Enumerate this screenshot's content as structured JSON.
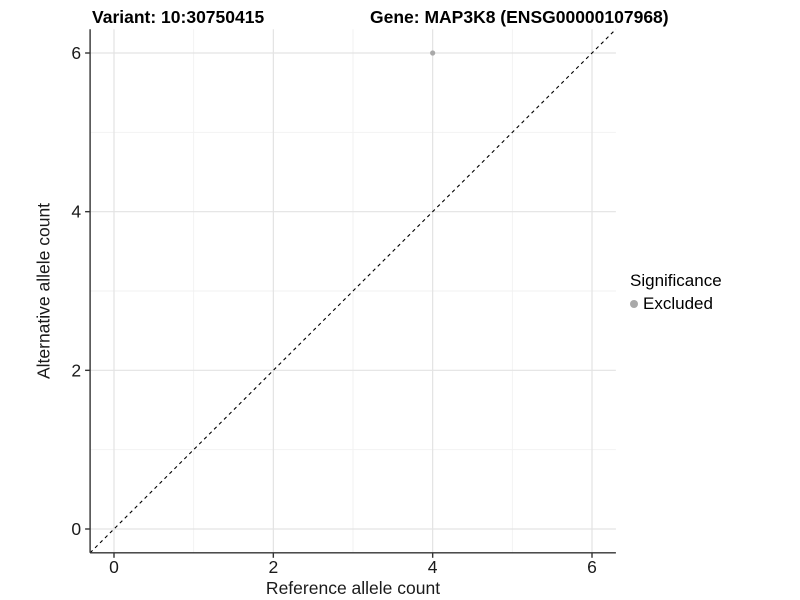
{
  "chart_data": {
    "type": "scatter",
    "title_left": "Variant: 10:30750415",
    "title_right": "Gene: MAP3K8 (ENSG00000107968)",
    "xlabel": "Reference allele count",
    "ylabel": "Alternative allele count",
    "xlim": [
      -0.3,
      6.3
    ],
    "ylim": [
      -0.3,
      6.3
    ],
    "x_ticks": [
      0,
      2,
      4,
      6
    ],
    "y_ticks": [
      0,
      2,
      4,
      6
    ],
    "x_minor_ticks": [
      1,
      3,
      5
    ],
    "y_minor_ticks": [
      1,
      3,
      5
    ],
    "grid": true,
    "legend_position": "right",
    "reference_line": {
      "meaning": "y = x identity line",
      "style": "dashed",
      "from": [
        -0.3,
        -0.3
      ],
      "to": [
        6.3,
        6.3
      ]
    },
    "points": [
      {
        "x": 4,
        "y": 6,
        "series": "Excluded"
      }
    ],
    "legend": {
      "title": "Significance",
      "items": [
        {
          "label": "Excluded",
          "color": "#a9a9a9"
        }
      ]
    },
    "colors": {
      "point": "#a9a9a9",
      "grid_major": "#e3e3e3",
      "grid_minor": "#f1f1f1",
      "axis_line": "#333333",
      "reference_line": "#000000",
      "background": "#ffffff"
    }
  }
}
